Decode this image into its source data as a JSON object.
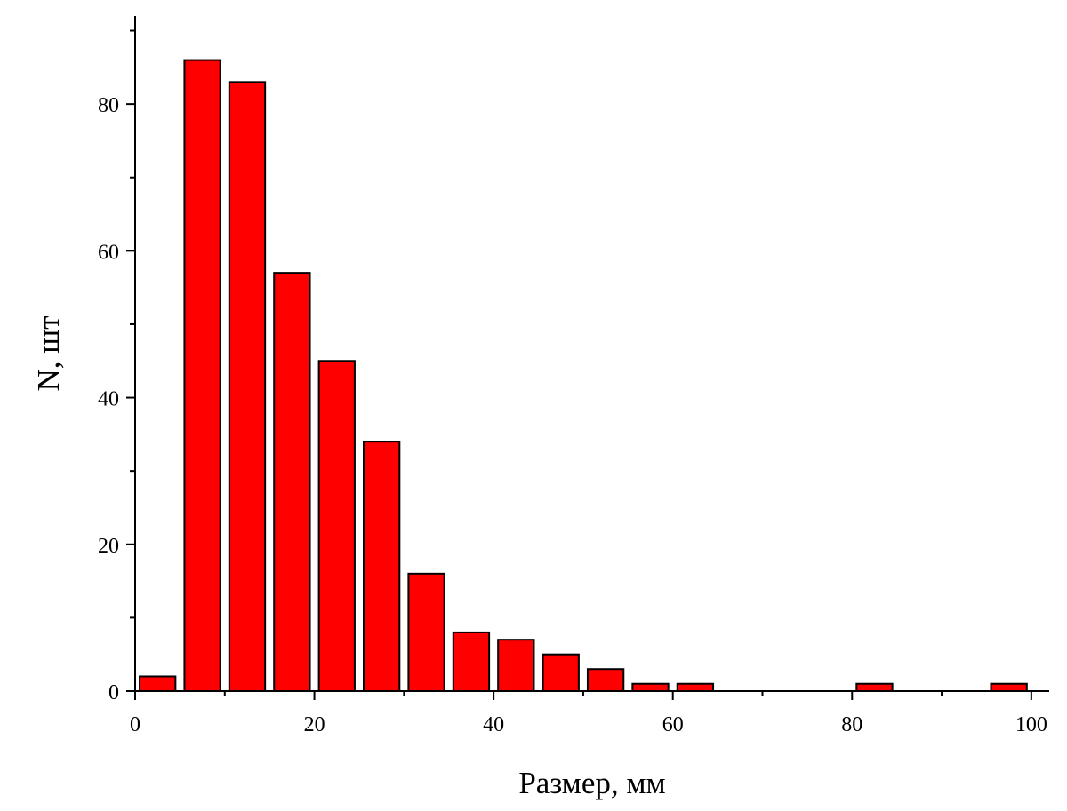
{
  "chart_data": {
    "type": "bar",
    "title": "",
    "xlabel": "Размер, мм",
    "ylabel": "N, шт",
    "xlim": [
      0,
      102
    ],
    "ylim": [
      0,
      92
    ],
    "x_ticks": [
      0,
      20,
      40,
      60,
      80,
      100
    ],
    "x_minor_ticks": [
      10,
      30,
      50,
      70,
      90
    ],
    "y_ticks": [
      0,
      20,
      40,
      60,
      80
    ],
    "y_minor_ticks": [
      10,
      30,
      50,
      70,
      90
    ],
    "bin_width": 5,
    "bar_width": 4,
    "bar_color": "#ff0000",
    "edge_color": "#000000",
    "grid": false,
    "x": [
      2.5,
      7.5,
      12.5,
      17.5,
      22.5,
      27.5,
      32.5,
      37.5,
      42.5,
      47.5,
      52.5,
      57.5,
      62.5,
      67.5,
      72.5,
      77.5,
      82.5,
      87.5,
      92.5,
      97.5
    ],
    "values": [
      2,
      86,
      83,
      57,
      45,
      34,
      16,
      8,
      7,
      5,
      3,
      1,
      1,
      0,
      0,
      0,
      1,
      0,
      0,
      1
    ]
  }
}
